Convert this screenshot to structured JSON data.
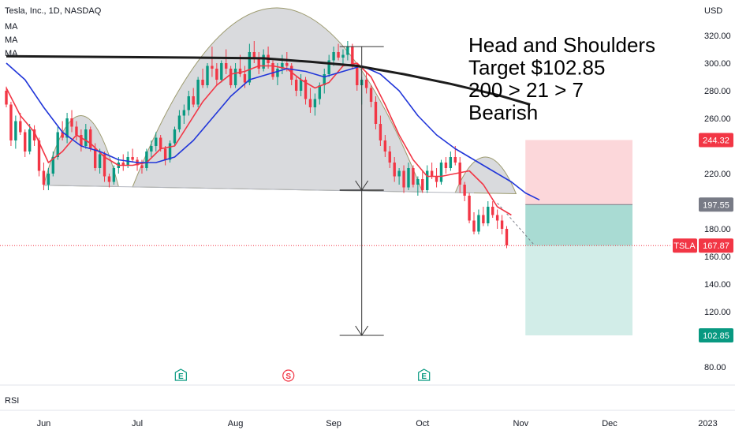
{
  "chart_data": {
    "type": "candlestick",
    "symbol_title": "Tesla, Inc., 1D, NASDAQ",
    "indicators": [
      "MA",
      "MA",
      "MA"
    ],
    "currency": "USD",
    "ylim": [
      72,
      340
    ],
    "y_ticks": [
      80,
      120,
      140,
      160,
      180,
      220,
      260,
      280,
      300,
      320
    ],
    "x_months": [
      {
        "label": "Jun",
        "t": 8
      },
      {
        "label": "Jul",
        "t": 28
      },
      {
        "label": "Aug",
        "t": 49
      },
      {
        "label": "Sep",
        "t": 70
      },
      {
        "label": "Oct",
        "t": 89
      },
      {
        "label": "Nov",
        "t": 110
      },
      {
        "label": "Dec",
        "t": 129
      },
      {
        "label": "2023",
        "t": 150
      }
    ],
    "candles": [
      [
        280,
        283,
        268,
        270
      ],
      [
        270,
        272,
        240,
        244
      ],
      [
        244,
        262,
        238,
        258
      ],
      [
        258,
        264,
        248,
        250
      ],
      [
        250,
        252,
        232,
        236
      ],
      [
        236,
        256,
        234,
        252
      ],
      [
        252,
        255,
        240,
        244
      ],
      [
        244,
        246,
        218,
        222
      ],
      [
        222,
        228,
        208,
        212
      ],
      [
        212,
        224,
        208,
        220
      ],
      [
        220,
        236,
        218,
        232
      ],
      [
        232,
        254,
        230,
        250
      ],
      [
        250,
        258,
        244,
        246
      ],
      [
        246,
        264,
        242,
        260
      ],
      [
        260,
        266,
        250,
        254
      ],
      [
        254,
        258,
        244,
        248
      ],
      [
        248,
        252,
        236,
        240
      ],
      [
        240,
        256,
        238,
        252
      ],
      [
        252,
        254,
        236,
        238
      ],
      [
        238,
        242,
        222,
        224
      ],
      [
        224,
        238,
        220,
        234
      ],
      [
        234,
        236,
        214,
        218
      ],
      [
        218,
        220,
        210,
        214
      ],
      [
        214,
        226,
        212,
        224
      ],
      [
        224,
        232,
        220,
        228
      ],
      [
        228,
        234,
        222,
        226
      ],
      [
        226,
        236,
        224,
        232
      ],
      [
        232,
        238,
        228,
        230
      ],
      [
        230,
        232,
        222,
        226
      ],
      [
        226,
        230,
        220,
        224
      ],
      [
        224,
        238,
        222,
        236
      ],
      [
        236,
        244,
        232,
        240
      ],
      [
        240,
        250,
        236,
        246
      ],
      [
        246,
        248,
        236,
        238
      ],
      [
        238,
        240,
        226,
        230
      ],
      [
        230,
        244,
        228,
        242
      ],
      [
        242,
        254,
        240,
        252
      ],
      [
        252,
        266,
        250,
        262
      ],
      [
        262,
        270,
        256,
        266
      ],
      [
        266,
        280,
        262,
        276
      ],
      [
        276,
        282,
        268,
        270
      ],
      [
        270,
        290,
        268,
        288
      ],
      [
        288,
        296,
        282,
        284
      ],
      [
        284,
        300,
        282,
        298
      ],
      [
        298,
        312,
        290,
        296
      ],
      [
        296,
        300,
        284,
        288
      ],
      [
        288,
        302,
        286,
        300
      ],
      [
        300,
        310,
        292,
        296
      ],
      [
        296,
        298,
        282,
        284
      ],
      [
        284,
        300,
        282,
        296
      ],
      [
        296,
        306,
        290,
        292
      ],
      [
        292,
        298,
        282,
        286
      ],
      [
        286,
        314,
        284,
        308
      ],
      [
        308,
        316,
        300,
        304
      ],
      [
        304,
        308,
        292,
        296
      ],
      [
        296,
        310,
        294,
        306
      ],
      [
        306,
        312,
        296,
        300
      ],
      [
        300,
        302,
        288,
        290
      ],
      [
        290,
        300,
        284,
        296
      ],
      [
        296,
        306,
        292,
        300
      ],
      [
        300,
        308,
        294,
        298
      ],
      [
        298,
        300,
        284,
        288
      ],
      [
        288,
        290,
        276,
        280
      ],
      [
        280,
        292,
        276,
        288
      ],
      [
        288,
        290,
        270,
        274
      ],
      [
        274,
        282,
        264,
        268
      ],
      [
        268,
        278,
        262,
        274
      ],
      [
        274,
        286,
        270,
        284
      ],
      [
        284,
        296,
        278,
        292
      ],
      [
        292,
        306,
        290,
        302
      ],
      [
        302,
        312,
        298,
        308
      ],
      [
        308,
        314,
        302,
        304
      ],
      [
        304,
        310,
        298,
        306
      ],
      [
        306,
        316,
        302,
        312
      ],
      [
        312,
        314,
        296,
        298
      ],
      [
        298,
        300,
        280,
        284
      ],
      [
        284,
        290,
        270,
        288
      ],
      [
        288,
        294,
        278,
        282
      ],
      [
        282,
        284,
        268,
        272
      ],
      [
        272,
        276,
        252,
        256
      ],
      [
        256,
        262,
        240,
        244
      ],
      [
        244,
        248,
        232,
        236
      ],
      [
        236,
        240,
        224,
        228
      ],
      [
        228,
        232,
        214,
        218
      ],
      [
        218,
        224,
        212,
        222
      ],
      [
        222,
        226,
        206,
        210
      ],
      [
        210,
        228,
        208,
        224
      ],
      [
        224,
        226,
        210,
        212
      ],
      [
        212,
        218,
        204,
        216
      ],
      [
        216,
        222,
        206,
        208
      ],
      [
        208,
        226,
        206,
        222
      ],
      [
        222,
        228,
        216,
        218
      ],
      [
        218,
        224,
        210,
        214
      ],
      [
        214,
        230,
        212,
        228
      ],
      [
        228,
        232,
        220,
        224
      ],
      [
        224,
        236,
        222,
        232
      ],
      [
        232,
        240,
        226,
        228
      ],
      [
        228,
        232,
        206,
        212
      ],
      [
        212,
        214,
        200,
        204
      ],
      [
        204,
        206,
        184,
        186
      ],
      [
        186,
        192,
        176,
        178
      ],
      [
        178,
        194,
        176,
        190
      ],
      [
        190,
        196,
        182,
        184
      ],
      [
        184,
        200,
        182,
        196
      ],
      [
        196,
        200,
        188,
        190
      ],
      [
        190,
        194,
        180,
        186
      ],
      [
        186,
        190,
        176,
        180
      ],
      [
        180,
        182,
        166,
        168
      ]
    ],
    "moving_averages": [
      {
        "name": "MA",
        "color": "#f23645",
        "values": [
          [
            0,
            282
          ],
          [
            3,
            262
          ],
          [
            6,
            250
          ],
          [
            9,
            228
          ],
          [
            12,
            236
          ],
          [
            15,
            248
          ],
          [
            18,
            242
          ],
          [
            21,
            232
          ],
          [
            24,
            226
          ],
          [
            27,
            226
          ],
          [
            30,
            228
          ],
          [
            33,
            238
          ],
          [
            36,
            240
          ],
          [
            39,
            256
          ],
          [
            42,
            272
          ],
          [
            45,
            284
          ],
          [
            48,
            292
          ],
          [
            51,
            294
          ],
          [
            54,
            298
          ],
          [
            57,
            298
          ],
          [
            60,
            296
          ],
          [
            63,
            288
          ],
          [
            66,
            282
          ],
          [
            69,
            286
          ],
          [
            72,
            298
          ],
          [
            75,
            300
          ],
          [
            78,
            290
          ],
          [
            81,
            270
          ],
          [
            84,
            248
          ],
          [
            87,
            230
          ],
          [
            90,
            218
          ],
          [
            93,
            218
          ],
          [
            96,
            220
          ],
          [
            99,
            222
          ],
          [
            102,
            212
          ],
          [
            105,
            196
          ],
          [
            108,
            190
          ]
        ]
      },
      {
        "name": "MA",
        "color": "#2136d9",
        "values": [
          [
            0,
            300
          ],
          [
            4,
            288
          ],
          [
            8,
            268
          ],
          [
            12,
            250
          ],
          [
            16,
            240
          ],
          [
            20,
            236
          ],
          [
            24,
            230
          ],
          [
            28,
            228
          ],
          [
            32,
            228
          ],
          [
            36,
            232
          ],
          [
            40,
            244
          ],
          [
            44,
            260
          ],
          [
            48,
            276
          ],
          [
            52,
            288
          ],
          [
            56,
            292
          ],
          [
            60,
            296
          ],
          [
            64,
            294
          ],
          [
            68,
            290
          ],
          [
            72,
            294
          ],
          [
            76,
            298
          ],
          [
            80,
            292
          ],
          [
            84,
            280
          ],
          [
            88,
            262
          ],
          [
            92,
            248
          ],
          [
            96,
            238
          ],
          [
            100,
            230
          ],
          [
            104,
            222
          ],
          [
            108,
            214
          ],
          [
            111,
            206
          ],
          [
            114,
            201
          ]
        ]
      },
      {
        "name": "MA",
        "color": "#1c1c1c",
        "values": [
          [
            0,
            305
          ],
          [
            20,
            304.5
          ],
          [
            40,
            304
          ],
          [
            55,
            303.5
          ],
          [
            65,
            301
          ],
          [
            75,
            298
          ],
          [
            85,
            292
          ],
          [
            95,
            285
          ],
          [
            105,
            277
          ],
          [
            112,
            270
          ]
        ]
      }
    ],
    "annotation": {
      "lines": [
        "Head and Shoulders",
        "Target $102.85",
        "200 > 21 > 7",
        "Bearish"
      ]
    },
    "price_labels": [
      {
        "value": 244.32,
        "text": "244.32",
        "color": "#f23645"
      },
      {
        "value": 197.55,
        "text": "197.55",
        "color": "#787b86"
      },
      {
        "value": 167.87,
        "text": "167.87",
        "color": "#f23645",
        "tag": "TSLA"
      },
      {
        "value": 102.85,
        "text": "102.85",
        "color": "#089981"
      }
    ],
    "trade": {
      "entry": 197.55,
      "stop": 244.32,
      "target": 102.85,
      "last": 167.87
    },
    "neckline": [
      [
        0,
        212
      ],
      [
        100,
        206
      ]
    ],
    "events": [
      {
        "t": 38,
        "symbol": "E",
        "color": "#089981"
      },
      {
        "t": 61,
        "symbol": "S",
        "color": "#f23645"
      },
      {
        "t": 90,
        "symbol": "E",
        "color": "#089981"
      }
    ],
    "projection": {
      "t": 76,
      "top": 312,
      "neck": 208,
      "bottom": 102.85
    },
    "rsi_label": "RSI",
    "up_color": "#089981",
    "down_color": "#f23645"
  }
}
